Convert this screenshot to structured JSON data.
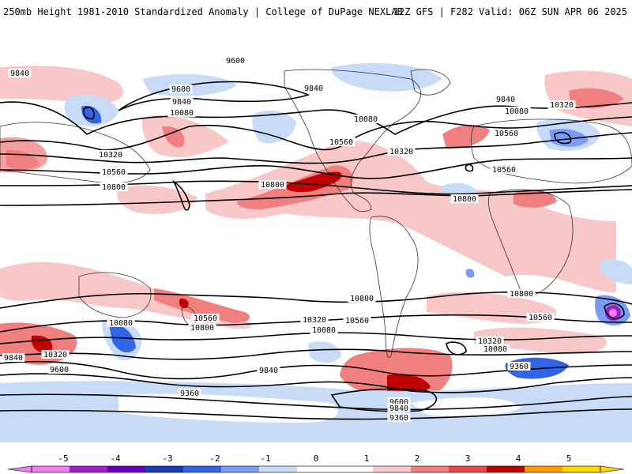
{
  "header": {
    "left": "250mb Height 1981-2010 Standardized Anomaly | College of DuPage NEXLAB",
    "right": "12Z GFS | F282 Valid: 06Z SUN APR 06 2025"
  },
  "colorbar": {
    "ticks": [
      "-5",
      "-4",
      "-3",
      "-2",
      "-1",
      "0",
      "1",
      "2",
      "3",
      "4",
      "5"
    ],
    "colors": [
      "#f07ff0",
      "#a020c8",
      "#6a00c0",
      "#1a3cb4",
      "#3264e6",
      "#7a9cf4",
      "#c8dcf8",
      "#ffffff",
      "#ffffff",
      "#f8c8c8",
      "#f08080",
      "#e84848",
      "#c00000",
      "#ff9a00",
      "#ffd400"
    ]
  },
  "contours": {
    "labels": [
      "9600",
      "9840",
      "9600",
      "9840",
      "10080",
      "10320",
      "10560",
      "10800",
      "9840",
      "10080",
      "10560",
      "10320",
      "10800",
      "10560",
      "9840",
      "10080",
      "10320",
      "10560",
      "10800",
      "10800",
      "10080",
      "10560",
      "10800",
      "10320",
      "10560",
      "10320",
      "10080",
      "9840",
      "9600",
      "9840",
      "9600",
      "9360",
      "10800",
      "10560",
      "10320",
      "10080",
      "9360",
      "9600",
      "9840",
      "9360"
    ]
  }
}
